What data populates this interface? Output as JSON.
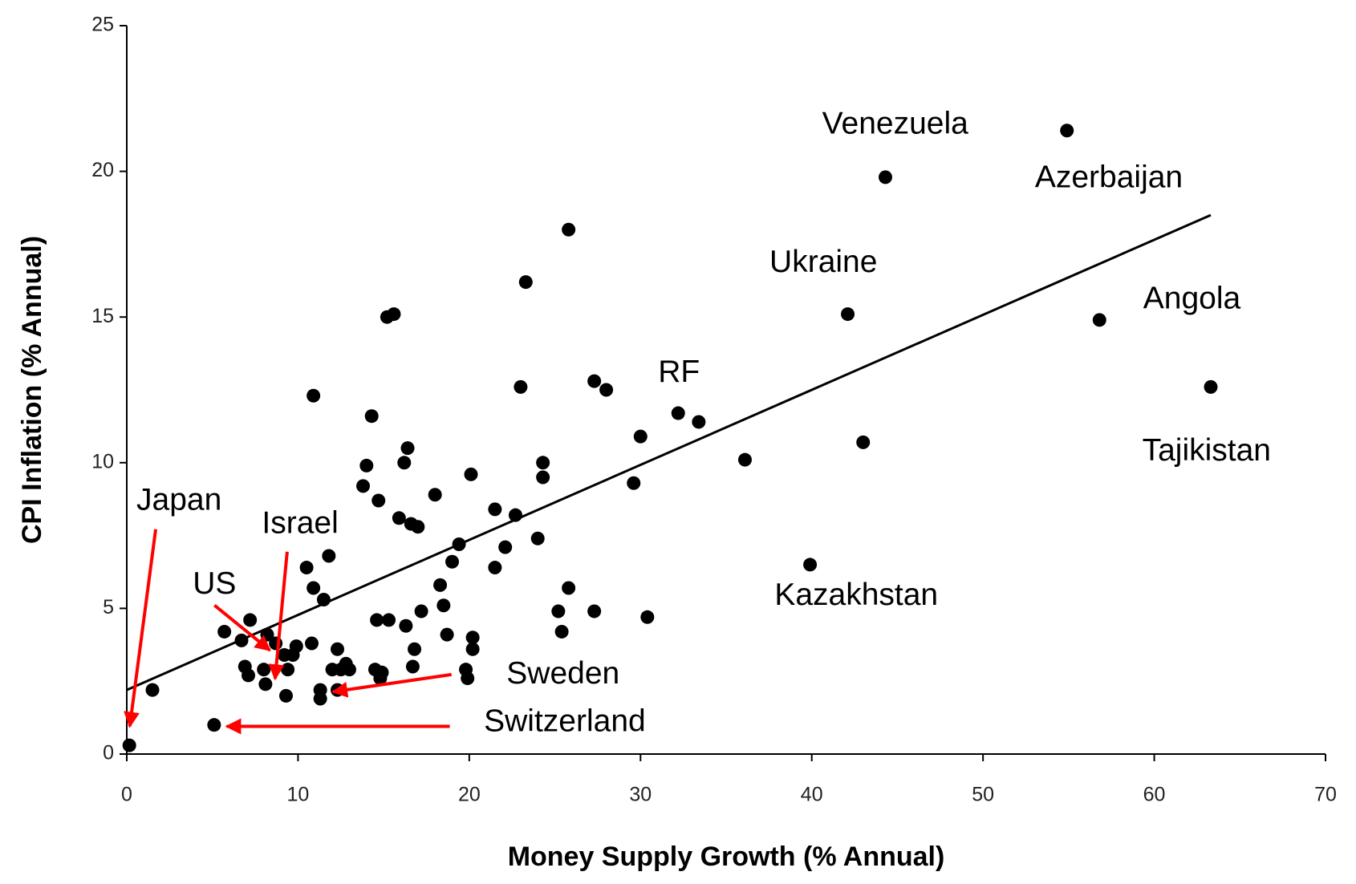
{
  "chart_data": {
    "type": "scatter",
    "x_label": "Money Supply Growth (% Annual)",
    "y_label": "CPI Inflation (% Annual)",
    "xlim": [
      0,
      70
    ],
    "xticks": [
      0,
      10,
      20,
      30,
      40,
      50,
      60,
      70
    ],
    "ylim": [
      0,
      25
    ],
    "yticks": [
      0,
      5,
      10,
      15,
      20,
      25
    ],
    "color": "#000000",
    "x": [
      0.15,
      1.5,
      5.1,
      5.7,
      7.2,
      6.7,
      6.9,
      7.1,
      8.0,
      8.1,
      8.2,
      8.7,
      9.2,
      9.4,
      9.7,
      9.9,
      9.3,
      10.8,
      10.5,
      10.9,
      11.5,
      11.8,
      10.9,
      11.3,
      11.3,
      12.3,
      12.0,
      12.5,
      12.3,
      12.8,
      13.0,
      13.8,
      14.0,
      14.3,
      14.7,
      14.6,
      14.5,
      14.9,
      15.2,
      15.6,
      15.3,
      14.8,
      15.9,
      16.2,
      16.4,
      16.3,
      16.6,
      17.0,
      16.8,
      16.7,
      17.2,
      18.0,
      18.3,
      18.5,
      18.7,
      19.0,
      19.4,
      20.1,
      20.2,
      20.2,
      19.8,
      19.9,
      21.5,
      21.5,
      22.1,
      22.7,
      23.3,
      23.0,
      24.0,
      24.3,
      24.3,
      25.2,
      25.4,
      25.8,
      25.8,
      27.3,
      28.0,
      27.3,
      29.6,
      30.0,
      30.4,
      32.2,
      33.4,
      36.1,
      39.9,
      42.1,
      43.0,
      44.3,
      54.9,
      56.8,
      63.3
    ],
    "y": [
      0.3,
      2.2,
      1.0,
      4.2,
      4.6,
      3.9,
      3.0,
      2.7,
      2.9,
      2.4,
      4.1,
      3.8,
      3.4,
      2.9,
      3.4,
      3.7,
      2.0,
      3.8,
      6.4,
      5.7,
      5.3,
      6.8,
      12.3,
      2.2,
      1.9,
      3.6,
      2.9,
      2.9,
      2.2,
      3.1,
      2.9,
      9.2,
      9.9,
      11.6,
      8.7,
      4.6,
      2.9,
      2.8,
      15.0,
      15.1,
      4.6,
      2.6,
      8.1,
      10.0,
      10.5,
      4.4,
      7.9,
      7.8,
      3.6,
      3.0,
      4.9,
      8.9,
      5.8,
      5.1,
      4.1,
      6.6,
      7.2,
      9.6,
      4.0,
      3.6,
      2.9,
      2.6,
      8.4,
      6.4,
      7.1,
      8.2,
      16.2,
      12.6,
      7.4,
      10.0,
      9.5,
      4.9,
      4.2,
      5.7,
      18.0,
      12.8,
      12.5,
      4.9,
      9.3,
      10.9,
      4.7,
      11.7,
      11.4,
      10.1,
      6.5,
      15.1,
      10.7,
      19.8,
      21.4,
      14.9,
      12.6
    ],
    "trend_line": {
      "x": [
        0,
        63.3
      ],
      "y": [
        2.2,
        18.5
      ],
      "color": "#000000"
    },
    "annotations": [
      "Venezuela",
      "Azerbaijan",
      "Ukraine",
      "Angola",
      "RF",
      "Tajikistan",
      "Kazakhstan",
      "Japan",
      "Israel",
      "US",
      "Sweden",
      "Switzerland"
    ],
    "arrow_color": "#ff0000"
  }
}
